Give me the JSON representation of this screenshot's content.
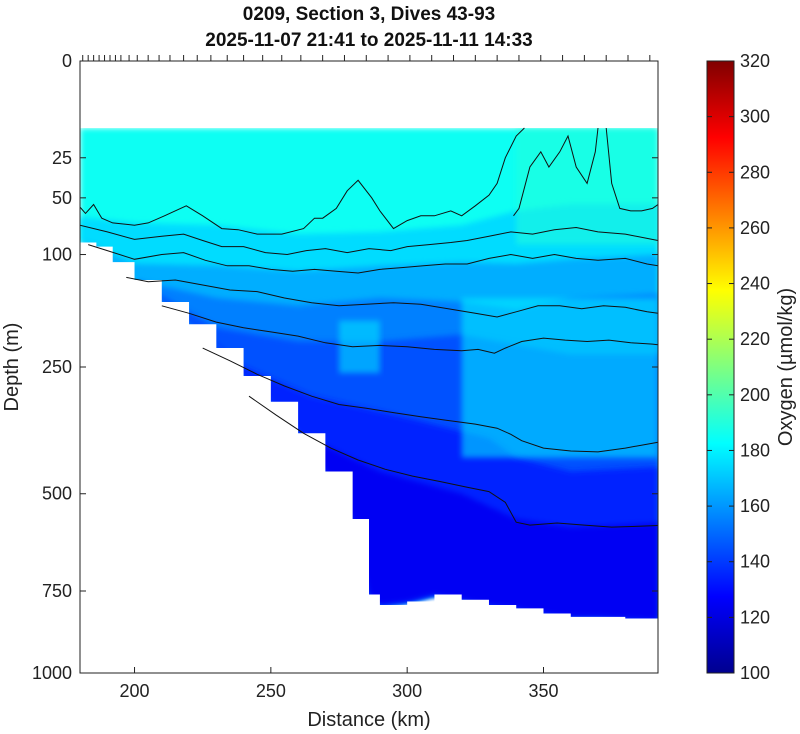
{
  "chart_data": {
    "type": "heatmap",
    "title": "0209, Section 3, Dives 43-93",
    "subtitle": "2025-11-07 21:41 to 2025-11-11 14:33",
    "xlabel": "Distance (km)",
    "ylabel": "Depth (m)",
    "xlim": [
      180,
      392
    ],
    "ylim": [
      0,
      1000
    ],
    "y_scale": "sqrt",
    "x_ticks": [
      200,
      250,
      300,
      350
    ],
    "y_ticks": [
      0,
      25,
      50,
      100,
      250,
      500,
      750,
      1000
    ],
    "colorbar": {
      "label": "Oxygen (µmol/kg)",
      "min": 100,
      "max": 320,
      "ticks": [
        100,
        120,
        140,
        160,
        180,
        200,
        220,
        240,
        260,
        280,
        300,
        320
      ],
      "colormap": "jet"
    },
    "surface_gap_depth_m": 12,
    "dive_positions_km": [
      181,
      183,
      185,
      187,
      189,
      191,
      193,
      195,
      198,
      201,
      205,
      209,
      213,
      218,
      223,
      228,
      234,
      240,
      247,
      254,
      261,
      269,
      277,
      285,
      293,
      301,
      309,
      317,
      325,
      333,
      341,
      349,
      357,
      365,
      373,
      381,
      389
    ],
    "bottom_depth_profile": [
      {
        "x": 180,
        "depth": 88
      },
      {
        "x": 186,
        "depth": 92
      },
      {
        "x": 192,
        "depth": 108
      },
      {
        "x": 200,
        "depth": 128
      },
      {
        "x": 210,
        "depth": 155
      },
      {
        "x": 220,
        "depth": 185
      },
      {
        "x": 230,
        "depth": 220
      },
      {
        "x": 240,
        "depth": 265
      },
      {
        "x": 250,
        "depth": 310
      },
      {
        "x": 260,
        "depth": 370
      },
      {
        "x": 270,
        "depth": 450
      },
      {
        "x": 280,
        "depth": 560
      },
      {
        "x": 286,
        "depth": 760
      },
      {
        "x": 290,
        "depth": 790
      },
      {
        "x": 300,
        "depth": 780
      },
      {
        "x": 310,
        "depth": 760
      },
      {
        "x": 320,
        "depth": 775
      },
      {
        "x": 330,
        "depth": 790
      },
      {
        "x": 340,
        "depth": 800
      },
      {
        "x": 350,
        "depth": 815
      },
      {
        "x": 360,
        "depth": 825
      },
      {
        "x": 370,
        "depth": 825
      },
      {
        "x": 380,
        "depth": 830
      },
      {
        "x": 392,
        "depth": 835
      }
    ],
    "oxygen_layers": [
      {
        "top_depth": [
          [
            180,
            12
          ],
          [
            392,
            12
          ]
        ],
        "value": 185
      },
      {
        "top_depth": [
          [
            180,
            65
          ],
          [
            200,
            70
          ],
          [
            230,
            72
          ],
          [
            260,
            80
          ],
          [
            290,
            78
          ],
          [
            320,
            72
          ],
          [
            340,
            60
          ],
          [
            360,
            55
          ],
          [
            392,
            55
          ]
        ],
        "value": 175
      },
      {
        "top_depth": [
          [
            180,
            95
          ],
          [
            200,
            110
          ],
          [
            230,
            112
          ],
          [
            260,
            118
          ],
          [
            290,
            112
          ],
          [
            320,
            108
          ],
          [
            340,
            110
          ],
          [
            360,
            105
          ],
          [
            392,
            100
          ]
        ],
        "value": 165
      },
      {
        "top_depth": [
          [
            180,
            110
          ],
          [
            200,
            130
          ],
          [
            230,
            150
          ],
          [
            260,
            160
          ],
          [
            290,
            150
          ],
          [
            320,
            155
          ],
          [
            340,
            165
          ],
          [
            360,
            150
          ],
          [
            392,
            145
          ]
        ],
        "value": 155
      },
      {
        "top_depth": [
          [
            200,
            150
          ],
          [
            230,
            190
          ],
          [
            260,
            210
          ],
          [
            290,
            210
          ],
          [
            320,
            200
          ],
          [
            340,
            215
          ],
          [
            360,
            230
          ],
          [
            392,
            230
          ]
        ],
        "value": 145
      },
      {
        "top_depth": [
          [
            215,
            200
          ],
          [
            240,
            250
          ],
          [
            265,
            300
          ],
          [
            300,
            340
          ],
          [
            330,
            380
          ],
          [
            340,
            420
          ],
          [
            360,
            450
          ],
          [
            392,
            440
          ]
        ],
        "value": 135
      },
      {
        "top_depth": [
          [
            230,
            280
          ],
          [
            260,
            380
          ],
          [
            290,
            450
          ],
          [
            320,
            500
          ],
          [
            340,
            560
          ],
          [
            360,
            580
          ],
          [
            392,
            570
          ]
        ],
        "value": 125
      }
    ],
    "oxygen_patches": [
      {
        "x": [
          275,
          290
        ],
        "depth": [
          180,
          260
        ],
        "value": 178
      },
      {
        "x": [
          320,
          392
        ],
        "depth": [
          150,
          420
        ],
        "value": 180
      },
      {
        "x": [
          340,
          392
        ],
        "depth": [
          12,
          90
        ],
        "value": 190
      }
    ],
    "contour_lines": [
      {
        "points": [
          [
            180,
            57
          ],
          [
            182,
            62
          ],
          [
            185,
            55
          ],
          [
            188,
            66
          ],
          [
            192,
            70
          ],
          [
            200,
            72
          ],
          [
            205,
            70
          ],
          [
            211,
            64
          ],
          [
            219,
            56
          ],
          [
            225,
            64
          ],
          [
            232,
            75
          ],
          [
            238,
            76
          ],
          [
            245,
            80
          ],
          [
            254,
            80
          ],
          [
            262,
            75
          ],
          [
            266,
            66
          ],
          [
            269,
            66
          ],
          [
            274,
            58
          ],
          [
            278,
            45
          ],
          [
            282,
            38
          ],
          [
            287,
            50
          ],
          [
            290,
            60
          ],
          [
            295,
            75
          ],
          [
            300,
            68
          ],
          [
            305,
            64
          ],
          [
            310,
            64
          ],
          [
            316,
            60
          ],
          [
            320,
            64
          ],
          [
            325,
            56
          ],
          [
            330,
            48
          ],
          [
            333,
            40
          ],
          [
            336,
            25
          ],
          [
            340,
            15
          ],
          [
            343,
            12
          ]
        ]
      },
      {
        "points": [
          [
            339,
            64
          ],
          [
            341,
            58
          ],
          [
            345,
            30
          ],
          [
            349,
            22
          ],
          [
            352,
            30
          ],
          [
            356,
            22
          ],
          [
            359,
            15
          ],
          [
            362,
            30
          ],
          [
            366,
            40
          ],
          [
            369,
            22
          ],
          [
            370,
            12
          ]
        ]
      },
      {
        "points": [
          [
            373,
            12
          ],
          [
            375,
            40
          ],
          [
            378,
            58
          ],
          [
            382,
            60
          ],
          [
            386,
            60
          ],
          [
            390,
            58
          ],
          [
            392,
            55
          ]
        ]
      },
      {
        "points": [
          [
            180,
            72
          ],
          [
            190,
            78
          ],
          [
            200,
            85
          ],
          [
            210,
            82
          ],
          [
            218,
            80
          ],
          [
            225,
            86
          ],
          [
            232,
            92
          ],
          [
            240,
            92
          ],
          [
            248,
            98
          ],
          [
            256,
            100
          ],
          [
            263,
            96
          ],
          [
            270,
            94
          ],
          [
            278,
            98
          ],
          [
            286,
            94
          ],
          [
            294,
            96
          ],
          [
            300,
            92
          ],
          [
            308,
            90
          ],
          [
            316,
            88
          ],
          [
            322,
            86
          ],
          [
            330,
            82
          ],
          [
            338,
            78
          ],
          [
            346,
            80
          ],
          [
            354,
            76
          ],
          [
            362,
            74
          ],
          [
            370,
            78
          ],
          [
            380,
            80
          ],
          [
            388,
            84
          ],
          [
            392,
            86
          ]
        ]
      },
      {
        "points": [
          [
            183,
            90
          ],
          [
            190,
            96
          ],
          [
            200,
            105
          ],
          [
            210,
            100
          ],
          [
            218,
            98
          ],
          [
            226,
            106
          ],
          [
            234,
            112
          ],
          [
            242,
            112
          ],
          [
            250,
            116
          ],
          [
            258,
            118
          ],
          [
            266,
            116
          ],
          [
            274,
            118
          ],
          [
            282,
            120
          ],
          [
            290,
            116
          ],
          [
            298,
            114
          ],
          [
            306,
            112
          ],
          [
            314,
            110
          ],
          [
            322,
            110
          ],
          [
            330,
            104
          ],
          [
            338,
            100
          ],
          [
            346,
            104
          ],
          [
            354,
            100
          ],
          [
            362,
            104
          ],
          [
            370,
            106
          ],
          [
            380,
            104
          ],
          [
            388,
            110
          ],
          [
            392,
            112
          ]
        ]
      },
      {
        "points": [
          [
            197,
            125
          ],
          [
            205,
            130
          ],
          [
            215,
            128
          ],
          [
            225,
            134
          ],
          [
            235,
            140
          ],
          [
            245,
            142
          ],
          [
            255,
            150
          ],
          [
            265,
            156
          ],
          [
            275,
            160
          ],
          [
            285,
            158
          ],
          [
            295,
            156
          ],
          [
            305,
            158
          ],
          [
            315,
            164
          ],
          [
            325,
            170
          ],
          [
            333,
            175
          ],
          [
            340,
            168
          ],
          [
            348,
            160
          ],
          [
            356,
            160
          ],
          [
            364,
            164
          ],
          [
            372,
            160
          ],
          [
            380,
            162
          ],
          [
            388,
            168
          ],
          [
            392,
            170
          ]
        ]
      },
      {
        "points": [
          [
            210,
            160
          ],
          [
            220,
            170
          ],
          [
            230,
            182
          ],
          [
            240,
            190
          ],
          [
            250,
            196
          ],
          [
            260,
            202
          ],
          [
            270,
            212
          ],
          [
            280,
            218
          ],
          [
            290,
            216
          ],
          [
            300,
            218
          ],
          [
            310,
            222
          ],
          [
            320,
            224
          ],
          [
            326,
            222
          ],
          [
            332,
            228
          ],
          [
            336,
            220
          ],
          [
            342,
            210
          ],
          [
            350,
            205
          ],
          [
            358,
            208
          ],
          [
            366,
            210
          ],
          [
            374,
            208
          ],
          [
            382,
            212
          ],
          [
            390,
            214
          ],
          [
            392,
            215
          ]
        ]
      },
      {
        "points": [
          [
            225,
            220
          ],
          [
            235,
            240
          ],
          [
            245,
            262
          ],
          [
            255,
            282
          ],
          [
            265,
            300
          ],
          [
            275,
            315
          ],
          [
            285,
            322
          ],
          [
            295,
            330
          ],
          [
            305,
            338
          ],
          [
            315,
            345
          ],
          [
            325,
            352
          ],
          [
            333,
            360
          ],
          [
            338,
            372
          ],
          [
            342,
            385
          ],
          [
            350,
            400
          ],
          [
            360,
            406
          ],
          [
            370,
            408
          ],
          [
            380,
            400
          ],
          [
            390,
            390
          ],
          [
            392,
            388
          ]
        ]
      },
      {
        "points": [
          [
            242,
            300
          ],
          [
            252,
            335
          ],
          [
            262,
            370
          ],
          [
            272,
            400
          ],
          [
            282,
            425
          ],
          [
            292,
            445
          ],
          [
            302,
            460
          ],
          [
            312,
            472
          ],
          [
            322,
            485
          ],
          [
            330,
            495
          ],
          [
            336,
            520
          ],
          [
            340,
            568
          ],
          [
            345,
            575
          ],
          [
            355,
            570
          ],
          [
            365,
            575
          ],
          [
            375,
            580
          ],
          [
            385,
            578
          ],
          [
            392,
            576
          ]
        ]
      }
    ]
  }
}
